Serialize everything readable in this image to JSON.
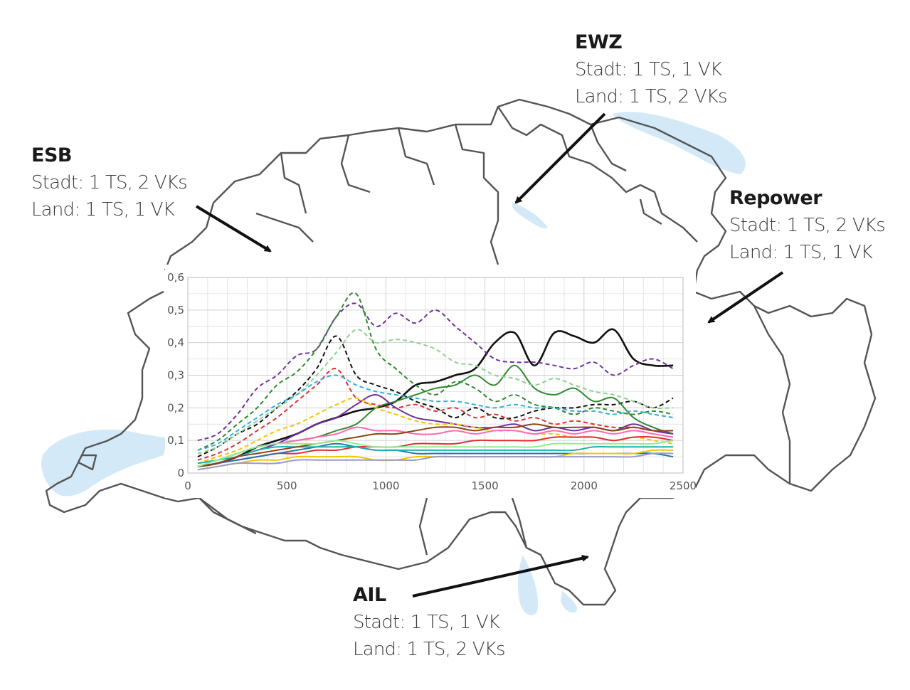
{
  "map": {
    "water_color": "#d4e9f7",
    "border_color": "#555555"
  },
  "annotations": {
    "esb": {
      "name": "ESB",
      "stadt": "Stadt: 1 TS, 2 VKs",
      "land": "Land: 1 TS, 1 VK"
    },
    "ewz": {
      "name": "EWZ",
      "stadt": "Stadt: 1 TS, 1 VK",
      "land": "Land: 1 TS, 2 VKs"
    },
    "repower": {
      "name": "Repower",
      "stadt": "Stadt: 1 TS, 2 VKs",
      "land": "Land: 1 TS, 1 VK"
    },
    "ail": {
      "name": "AIL",
      "stadt": "Stadt: 1 TS, 1 VK",
      "land": "Land: 1 TS, 2 VKs"
    }
  },
  "chart_data": {
    "type": "line",
    "title": "",
    "xlabel": "",
    "ylabel": "",
    "xlim": [
      0,
      2500
    ],
    "ylim": [
      0,
      0.6
    ],
    "grid": true,
    "legend": "none",
    "x_ticks": [
      0,
      500,
      1000,
      1500,
      2000,
      2500
    ],
    "x_tick_labels": [
      "0",
      "500",
      "1000",
      "1500",
      "2000",
      "2500"
    ],
    "y_ticks": [
      0,
      0.1,
      0.2,
      0.3,
      0.4,
      0.5,
      0.6
    ],
    "y_tick_labels": [
      "0",
      "0,1",
      "0,2",
      "0,3",
      "0,4",
      "0,5",
      "0,6"
    ],
    "x": [
      50,
      150,
      250,
      350,
      450,
      550,
      650,
      750,
      850,
      950,
      1050,
      1150,
      1250,
      1350,
      1450,
      1550,
      1650,
      1750,
      1850,
      1950,
      2050,
      2150,
      2250,
      2350,
      2450
    ],
    "series": [
      {
        "color": "#111111",
        "dash": false,
        "values": [
          0.02,
          0.03,
          0.05,
          0.08,
          0.1,
          0.12,
          0.15,
          0.17,
          0.19,
          0.2,
          0.22,
          0.27,
          0.28,
          0.3,
          0.32,
          0.4,
          0.43,
          0.33,
          0.43,
          0.42,
          0.4,
          0.44,
          0.35,
          0.33,
          0.33
        ]
      },
      {
        "color": "#111111",
        "dash": true,
        "values": [
          0.05,
          0.08,
          0.12,
          0.15,
          0.2,
          0.25,
          0.32,
          0.42,
          0.3,
          0.27,
          0.25,
          0.22,
          0.2,
          0.17,
          0.2,
          0.17,
          0.17,
          0.19,
          0.2,
          0.2,
          0.21,
          0.21,
          0.22,
          0.2,
          0.23
        ]
      },
      {
        "color": "#7030a0",
        "dash": true,
        "values": [
          0.1,
          0.12,
          0.18,
          0.26,
          0.3,
          0.36,
          0.38,
          0.48,
          0.52,
          0.45,
          0.49,
          0.46,
          0.5,
          0.45,
          0.4,
          0.35,
          0.34,
          0.34,
          0.33,
          0.32,
          0.34,
          0.3,
          0.33,
          0.35,
          0.32
        ]
      },
      {
        "color": "#2e8b2e",
        "dash": true,
        "values": [
          0.07,
          0.1,
          0.15,
          0.2,
          0.27,
          0.31,
          0.38,
          0.48,
          0.55,
          0.38,
          0.32,
          0.27,
          0.24,
          0.28,
          0.26,
          0.22,
          0.24,
          0.21,
          0.2,
          0.18,
          0.2,
          0.19,
          0.18,
          0.19,
          0.18
        ]
      },
      {
        "color": "#2e8b2e",
        "dash": false,
        "values": [
          0.02,
          0.04,
          0.06,
          0.08,
          0.09,
          0.1,
          0.11,
          0.13,
          0.15,
          0.2,
          0.22,
          0.24,
          0.26,
          0.27,
          0.3,
          0.27,
          0.33,
          0.26,
          0.24,
          0.26,
          0.22,
          0.23,
          0.17,
          0.14,
          0.12
        ]
      },
      {
        "color": "#8fd18f",
        "dash": true,
        "values": [
          0.06,
          0.08,
          0.12,
          0.16,
          0.2,
          0.24,
          0.3,
          0.37,
          0.44,
          0.4,
          0.41,
          0.4,
          0.38,
          0.34,
          0.33,
          0.3,
          0.29,
          0.27,
          0.29,
          0.27,
          0.25,
          0.24,
          0.22,
          0.2,
          0.2
        ]
      },
      {
        "color": "#e03030",
        "dash": true,
        "values": [
          0.04,
          0.06,
          0.09,
          0.13,
          0.17,
          0.22,
          0.27,
          0.32,
          0.23,
          0.21,
          0.2,
          0.21,
          0.19,
          0.2,
          0.17,
          0.18,
          0.16,
          0.17,
          0.15,
          0.16,
          0.15,
          0.14,
          0.14,
          0.13,
          0.13
        ]
      },
      {
        "color": "#30b0e0",
        "dash": true,
        "values": [
          0.07,
          0.09,
          0.13,
          0.17,
          0.21,
          0.24,
          0.28,
          0.3,
          0.27,
          0.25,
          0.24,
          0.23,
          0.22,
          0.22,
          0.21,
          0.2,
          0.21,
          0.2,
          0.2,
          0.19,
          0.19,
          0.18,
          0.19,
          0.18,
          0.17
        ]
      },
      {
        "color": "#7030a0",
        "dash": false,
        "values": [
          0.02,
          0.03,
          0.05,
          0.07,
          0.09,
          0.12,
          0.15,
          0.17,
          0.21,
          0.24,
          0.2,
          0.17,
          0.16,
          0.15,
          0.14,
          0.14,
          0.15,
          0.13,
          0.14,
          0.13,
          0.14,
          0.13,
          0.15,
          0.13,
          0.12
        ]
      },
      {
        "color": "#f5c400",
        "dash": true,
        "values": [
          0.03,
          0.05,
          0.07,
          0.1,
          0.13,
          0.15,
          0.18,
          0.21,
          0.23,
          0.2,
          0.18,
          0.16,
          0.15,
          0.15,
          0.14,
          0.13,
          0.13,
          0.12,
          0.12,
          0.11,
          0.11,
          0.1,
          0.11,
          0.1,
          0.09
        ]
      },
      {
        "color": "#e03030",
        "dash": false,
        "values": [
          0.02,
          0.03,
          0.04,
          0.05,
          0.06,
          0.06,
          0.07,
          0.07,
          0.08,
          0.08,
          0.08,
          0.09,
          0.09,
          0.09,
          0.1,
          0.1,
          0.1,
          0.1,
          0.11,
          0.11,
          0.11,
          0.1,
          0.11,
          0.11,
          0.1
        ]
      },
      {
        "color": "#ff69b4",
        "dash": false,
        "values": [
          0.03,
          0.04,
          0.06,
          0.08,
          0.09,
          0.1,
          0.11,
          0.12,
          0.14,
          0.13,
          0.13,
          0.12,
          0.12,
          0.13,
          0.12,
          0.13,
          0.13,
          0.12,
          0.13,
          0.12,
          0.13,
          0.12,
          0.13,
          0.12,
          0.11
        ]
      },
      {
        "color": "#1f77b4",
        "dash": false,
        "values": [
          0.02,
          0.03,
          0.04,
          0.05,
          0.06,
          0.07,
          0.08,
          0.09,
          0.08,
          0.07,
          0.07,
          0.06,
          0.06,
          0.06,
          0.06,
          0.06,
          0.06,
          0.06,
          0.06,
          0.06,
          0.06,
          0.06,
          0.06,
          0.06,
          0.05
        ]
      },
      {
        "color": "#20b2aa",
        "dash": false,
        "values": [
          0.03,
          0.04,
          0.05,
          0.07,
          0.08,
          0.08,
          0.08,
          0.08,
          0.08,
          0.07,
          0.07,
          0.07,
          0.07,
          0.07,
          0.07,
          0.07,
          0.07,
          0.07,
          0.07,
          0.07,
          0.08,
          0.08,
          0.08,
          0.08,
          0.08
        ]
      },
      {
        "color": "#f5c400",
        "dash": false,
        "values": [
          0.01,
          0.02,
          0.03,
          0.04,
          0.04,
          0.05,
          0.05,
          0.05,
          0.05,
          0.04,
          0.04,
          0.05,
          0.05,
          0.05,
          0.05,
          0.05,
          0.05,
          0.05,
          0.05,
          0.06,
          0.06,
          0.06,
          0.06,
          0.07,
          0.07
        ]
      },
      {
        "color": "#9999cc",
        "dash": false,
        "values": [
          0.01,
          0.02,
          0.03,
          0.03,
          0.03,
          0.04,
          0.04,
          0.04,
          0.04,
          0.04,
          0.04,
          0.04,
          0.05,
          0.05,
          0.05,
          0.05,
          0.05,
          0.05,
          0.05,
          0.05,
          0.05,
          0.05,
          0.05,
          0.06,
          0.06
        ]
      },
      {
        "color": "#8b4513",
        "dash": false,
        "values": [
          0.02,
          0.03,
          0.05,
          0.06,
          0.07,
          0.08,
          0.09,
          0.1,
          0.11,
          0.12,
          0.12,
          0.13,
          0.14,
          0.14,
          0.13,
          0.14,
          0.14,
          0.15,
          0.14,
          0.14,
          0.14,
          0.13,
          0.14,
          0.13,
          0.13
        ]
      },
      {
        "color": "#90ee90",
        "dash": false,
        "values": [
          0.02,
          0.04,
          0.06,
          0.08,
          0.09,
          0.09,
          0.09,
          0.1,
          0.09,
          0.08,
          0.08,
          0.08,
          0.08,
          0.08,
          0.08,
          0.08,
          0.08,
          0.08,
          0.09,
          0.09,
          0.09,
          0.09,
          0.09,
          0.09,
          0.1
        ]
      }
    ]
  }
}
